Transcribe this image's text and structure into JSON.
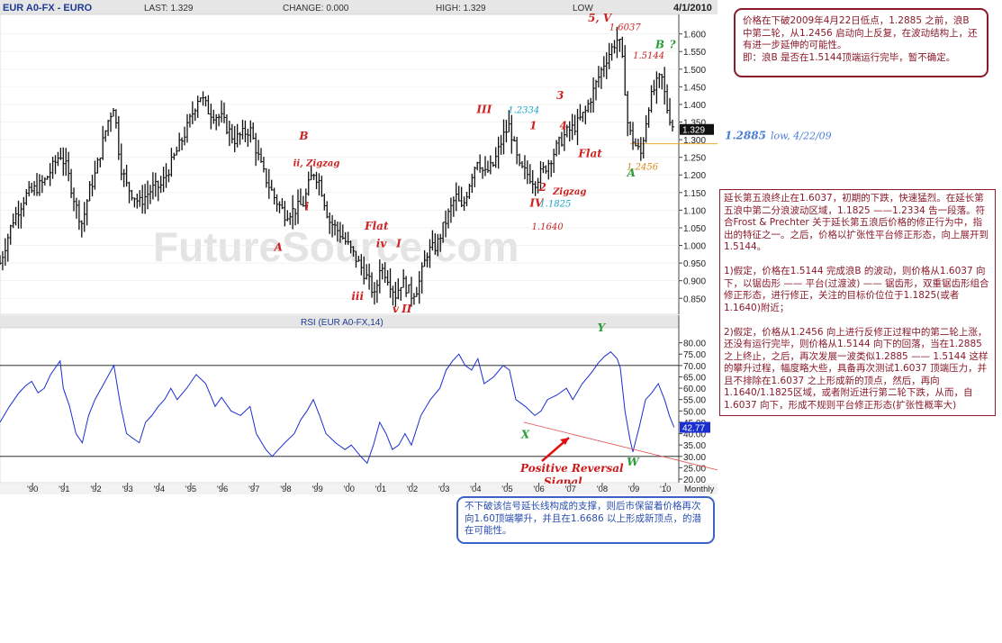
{
  "header": {
    "symbol": "EUR A0-FX - EURO",
    "last": "LAST: 1.329",
    "change": "CHANGE: 0.000",
    "high": "HIGH: 1.329",
    "low": "LOW",
    "date": "4/1/2010"
  },
  "watermark": "FutureSource.com",
  "chart_data": [
    {
      "type": "bar",
      "title": "EUR A0-FX - EURO",
      "frequency": "Monthly",
      "ylim": [
        0.82,
        1.64
      ],
      "yticks": [
        "1.600",
        "1.550",
        "1.500",
        "1.450",
        "1.400",
        "1.350",
        "1.300",
        "1.250",
        "1.200",
        "1.150",
        "1.100",
        "1.050",
        "1.000",
        "0.950",
        "0.900",
        "0.850"
      ],
      "last_value": "1.329",
      "reference_line": {
        "value": "1.2885",
        "label": "low, 4/22/09"
      },
      "close_path": [
        [
          1989.0,
          0.95
        ],
        [
          1989.4,
          1.07
        ],
        [
          1989.8,
          1.14
        ],
        [
          1990.4,
          1.18
        ],
        [
          1990.9,
          1.26
        ],
        [
          1991.1,
          1.22
        ],
        [
          1991.4,
          1.11
        ],
        [
          1991.6,
          1.06
        ],
        [
          1991.8,
          1.15
        ],
        [
          1992.0,
          1.2
        ],
        [
          1992.4,
          1.35
        ],
        [
          1992.6,
          1.4
        ],
        [
          1992.8,
          1.23
        ],
        [
          1993.0,
          1.17
        ],
        [
          1993.4,
          1.12
        ],
        [
          1993.8,
          1.16
        ],
        [
          1994.1,
          1.17
        ],
        [
          1994.5,
          1.25
        ],
        [
          1994.9,
          1.33
        ],
        [
          1995.3,
          1.43
        ],
        [
          1995.6,
          1.38
        ],
        [
          1996.0,
          1.36
        ],
        [
          1996.4,
          1.3
        ],
        [
          1996.9,
          1.33
        ],
        [
          1997.3,
          1.21
        ],
        [
          1997.7,
          1.13
        ],
        [
          1998.0,
          1.09
        ],
        [
          1998.3,
          1.1
        ],
        [
          1998.6,
          1.12
        ],
        [
          1998.75,
          1.17
        ],
        [
          1998.9,
          1.21
        ],
        [
          1999.1,
          1.18
        ],
        [
          1999.4,
          1.07
        ],
        [
          1999.7,
          1.04
        ],
        [
          2000.0,
          1.0
        ],
        [
          2000.4,
          0.94
        ],
        [
          2000.7,
          0.89
        ],
        [
          2000.85,
          0.85
        ],
        [
          2001.0,
          0.94
        ],
        [
          2001.2,
          0.92
        ],
        [
          2001.5,
          0.86
        ],
        [
          2001.7,
          0.9
        ],
        [
          2002.0,
          0.86
        ],
        [
          2002.2,
          0.88
        ],
        [
          2002.5,
          0.98
        ],
        [
          2002.8,
          1.0
        ],
        [
          2003.0,
          1.05
        ],
        [
          2003.4,
          1.14
        ],
        [
          2003.6,
          1.1
        ],
        [
          2003.9,
          1.2
        ],
        [
          2004.1,
          1.25
        ],
        [
          2004.3,
          1.2
        ],
        [
          2004.6,
          1.23
        ],
        [
          2004.9,
          1.31
        ],
        [
          2005.1,
          1.34
        ],
        [
          2005.4,
          1.22
        ],
        [
          2005.7,
          1.2
        ],
        [
          2005.9,
          1.18
        ],
        [
          2006.3,
          1.23
        ],
        [
          2006.6,
          1.28
        ],
        [
          2006.9,
          1.32
        ],
        [
          2007.2,
          1.34
        ],
        [
          2007.5,
          1.38
        ],
        [
          2007.8,
          1.45
        ],
        [
          2008.1,
          1.52
        ],
        [
          2008.4,
          1.57
        ],
        [
          2008.55,
          1.59
        ],
        [
          2008.7,
          1.5
        ],
        [
          2008.85,
          1.33
        ],
        [
          2009.1,
          1.28
        ],
        [
          2009.25,
          1.26
        ],
        [
          2009.5,
          1.4
        ],
        [
          2009.7,
          1.45
        ],
        [
          2009.9,
          1.48
        ],
        [
          2010.1,
          1.38
        ],
        [
          2010.3,
          1.329
        ]
      ]
    },
    {
      "type": "line",
      "title": "RSI (EUR A0-FX,14)",
      "ylim": [
        20,
        85
      ],
      "yticks": [
        "80.00",
        "75.00",
        "70.00",
        "65.00",
        "60.00",
        "55.00",
        "50.00",
        "45.00",
        "40.00",
        "35.00",
        "30.00",
        "25.00",
        "20.00"
      ],
      "last_value": "42.77",
      "reference_lines": [
        30,
        70
      ],
      "x_tick_labels": [
        "'90",
        "'91",
        "'92",
        "'93",
        "'94",
        "'95",
        "'96",
        "'97",
        "'98",
        "'99",
        "'00",
        "'01",
        "'02",
        "'03",
        "'04",
        "'05",
        "'06",
        "'07",
        "'08",
        "'09",
        "'10"
      ],
      "x_tick_values": [
        1990,
        1991,
        1992,
        1993,
        1994,
        1995,
        1996,
        1997,
        1998,
        1999,
        2000,
        2001,
        2002,
        2003,
        2004,
        2005,
        2006,
        2007,
        2008,
        2009,
        2010
      ],
      "x_tick_suffix": "Monthly",
      "points": [
        [
          1989.0,
          45
        ],
        [
          1989.3,
          52
        ],
        [
          1989.6,
          58
        ],
        [
          1989.8,
          61
        ],
        [
          1990.0,
          63
        ],
        [
          1990.2,
          58
        ],
        [
          1990.4,
          60
        ],
        [
          1990.6,
          66
        ],
        [
          1990.9,
          72
        ],
        [
          1991.0,
          60
        ],
        [
          1991.2,
          52
        ],
        [
          1991.4,
          40
        ],
        [
          1991.6,
          36
        ],
        [
          1991.8,
          48
        ],
        [
          1992.0,
          55
        ],
        [
          1992.2,
          60
        ],
        [
          1992.4,
          65
        ],
        [
          1992.6,
          70
        ],
        [
          1992.8,
          53
        ],
        [
          1993.0,
          40
        ],
        [
          1993.2,
          38
        ],
        [
          1993.4,
          36
        ],
        [
          1993.6,
          45
        ],
        [
          1993.8,
          48
        ],
        [
          1994.0,
          52
        ],
        [
          1994.2,
          55
        ],
        [
          1994.4,
          60
        ],
        [
          1994.6,
          55
        ],
        [
          1994.9,
          60
        ],
        [
          1995.2,
          66
        ],
        [
          1995.5,
          62
        ],
        [
          1995.8,
          52
        ],
        [
          1996.0,
          56
        ],
        [
          1996.3,
          50
        ],
        [
          1996.6,
          48
        ],
        [
          1996.9,
          52
        ],
        [
          1997.1,
          40
        ],
        [
          1997.4,
          33
        ],
        [
          1997.6,
          30
        ],
        [
          1997.8,
          33
        ],
        [
          1998.0,
          36
        ],
        [
          1998.3,
          40
        ],
        [
          1998.5,
          46
        ],
        [
          1998.7,
          50
        ],
        [
          1998.9,
          55
        ],
        [
          1999.1,
          48
        ],
        [
          1999.3,
          40
        ],
        [
          1999.6,
          36
        ],
        [
          1999.9,
          33
        ],
        [
          2000.1,
          35
        ],
        [
          2000.4,
          30
        ],
        [
          2000.6,
          27
        ],
        [
          2000.8,
          35
        ],
        [
          2001.0,
          45
        ],
        [
          2001.2,
          40
        ],
        [
          2001.4,
          33
        ],
        [
          2001.6,
          35
        ],
        [
          2001.8,
          40
        ],
        [
          2002.0,
          35
        ],
        [
          2002.3,
          48
        ],
        [
          2002.6,
          55
        ],
        [
          2002.9,
          60
        ],
        [
          2003.1,
          68
        ],
        [
          2003.3,
          72
        ],
        [
          2003.5,
          75
        ],
        [
          2003.7,
          70
        ],
        [
          2003.9,
          68
        ],
        [
          2004.1,
          73
        ],
        [
          2004.3,
          62
        ],
        [
          2004.6,
          65
        ],
        [
          2004.9,
          70
        ],
        [
          2005.1,
          68
        ],
        [
          2005.3,
          55
        ],
        [
          2005.6,
          52
        ],
        [
          2005.9,
          48
        ],
        [
          2006.1,
          50
        ],
        [
          2006.3,
          55
        ],
        [
          2006.6,
          57
        ],
        [
          2006.9,
          60
        ],
        [
          2007.1,
          55
        ],
        [
          2007.4,
          62
        ],
        [
          2007.7,
          67
        ],
        [
          2007.9,
          71
        ],
        [
          2008.1,
          74
        ],
        [
          2008.3,
          76
        ],
        [
          2008.5,
          73
        ],
        [
          2008.6,
          69
        ],
        [
          2008.75,
          50
        ],
        [
          2008.9,
          38
        ],
        [
          2009.0,
          32
        ],
        [
          2009.2,
          43
        ],
        [
          2009.4,
          55
        ],
        [
          2009.6,
          58
        ],
        [
          2009.8,
          62
        ],
        [
          2010.0,
          55
        ],
        [
          2010.15,
          48
        ],
        [
          2010.3,
          42.77
        ]
      ]
    }
  ],
  "wave_labels": [
    {
      "text": "A",
      "x": 1997.8,
      "y": 0.985,
      "color": "#cc2222"
    },
    {
      "text": "B",
      "x": 1998.6,
      "y": 1.3,
      "color": "#cc2222"
    },
    {
      "text": "ii, Zigzag",
      "x": 1999.0,
      "y": 1.225,
      "color": "#cc2222"
    },
    {
      "text": "i",
      "x": 1998.7,
      "y": 1.1,
      "color": "#cc2222"
    },
    {
      "text": "Flat",
      "x": 2000.9,
      "y": 1.045,
      "color": "#cc2222"
    },
    {
      "text": "iv",
      "x": 2001.05,
      "y": 0.995,
      "color": "#cc2222"
    },
    {
      "text": "I",
      "x": 2001.6,
      "y": 0.995,
      "color": "#cc2222"
    },
    {
      "text": "iii",
      "x": 2000.3,
      "y": 0.845,
      "color": "#cc2222"
    },
    {
      "text": "v",
      "x": 2001.5,
      "y": 0.81,
      "color": "#cc2222"
    },
    {
      "text": "II",
      "x": 2001.85,
      "y": 0.81,
      "color": "#cc2222"
    },
    {
      "text": "III",
      "x": 2004.3,
      "y": 1.375,
      "color": "#cc2222"
    },
    {
      "text": "1.2334",
      "x": 2005.55,
      "y": 1.375,
      "color": "#1aa3c9"
    },
    {
      "text": "1",
      "x": 2005.85,
      "y": 1.33,
      "color": "#cc2222"
    },
    {
      "text": "3",
      "x": 2006.7,
      "y": 1.415,
      "color": "#cc2222"
    },
    {
      "text": "4",
      "x": 2006.8,
      "y": 1.33,
      "color": "#cc2222"
    },
    {
      "text": "5, V",
      "x": 2007.95,
      "y": 1.635,
      "color": "#cc2222"
    },
    {
      "text": "1.6037",
      "x": 2008.75,
      "y": 1.61,
      "color": "#cc2222"
    },
    {
      "text": "1.5144",
      "x": 2009.5,
      "y": 1.53,
      "color": "#cc2222"
    },
    {
      "text": "B",
      "x": 2009.85,
      "y": 1.56,
      "color": "#2a9d3a"
    },
    {
      "text": "?",
      "x": 2010.25,
      "y": 1.56,
      "color": "#2a9d3a"
    },
    {
      "text": "Flat",
      "x": 2007.65,
      "y": 1.25,
      "color": "#cc2222"
    },
    {
      "text": "1.2456",
      "x": 2009.3,
      "y": 1.215,
      "color": "#d88a1a"
    },
    {
      "text": "A",
      "x": 2008.95,
      "y": 1.195,
      "color": "#2a9d3a"
    },
    {
      "text": "2",
      "x": 2006.15,
      "y": 1.155,
      "color": "#cc2222"
    },
    {
      "text": "Zigzag",
      "x": 2007.0,
      "y": 1.145,
      "color": "#cc2222"
    },
    {
      "text": "IV",
      "x": 2005.95,
      "y": 1.11,
      "color": "#cc2222"
    },
    {
      "text": "1.1825",
      "x": 2006.55,
      "y": 1.11,
      "color": "#1aa3c9"
    },
    {
      "text": "1.1640",
      "x": 2006.3,
      "y": 1.045,
      "color": "#cc2222"
    }
  ],
  "rsi_labels": [
    {
      "text": "Y",
      "x": 2008.0,
      "y": 85,
      "color": "#2a9d3a"
    },
    {
      "text": "X",
      "x": 2005.6,
      "y": 38,
      "color": "#2a9d3a"
    },
    {
      "text": "W",
      "x": 2009.0,
      "y": 26,
      "color": "#2a9d3a"
    }
  ],
  "rsi_annotation": {
    "line1": "Positive Reversal",
    "line2": "Signal"
  },
  "notes": {
    "top": "价格在下破2009年4月22日低点，1.2885 之前，浪B 中第二轮，从1.2456 启动向上反复，在波动结构上，还有进一步延伸的可能性。\n即：浪B 是否在1.5144顶端运行完毕，暂不确定。",
    "right": "延长第五浪终止在1.6037，初期的下跌，快速猛烈。在延长第五浪中第二分浪波动区域，1.1825 ——1.2334 告一段落。符合Frost & Prechter 关于延长第五浪后价格的修正行为中，指出的特征之一。之后，价格以扩张性平台修正形态，向上展开到1.5144。\n\n1)假定，价格在1.5144 完成浪B 的波动，则价格从1.6037 向下，以锯齿形 —— 平台(过渡波) —— 锯齿形，双重锯齿形组合修正形态，进行修正，关注的目标价位位于1.1825(或者1.1640)附近；\n\n2)假定，价格从1.2456 向上进行反修正过程中的第二轮上涨，还没有运行完毕，则价格从1.5144 向下的回落，当在1.2885 之上终止，之后，再次发展一波类似1.2885 —— 1.5144 这样的攀升过程，幅度略大些，具备再次测试1.6037 顶端压力，并且不排除在1.6037 之上形成新的顶点，然后，再向1.1640/1.1825区域，或者附近进行第二轮下跌，从而，自1.6037 向下，形成不规则平台修正形态(扩张性概率大)",
    "bottom": "不下破该信号延长线构成的支撑，则后市保留着价格再次向1.60顶端攀升，并且在1.6686 以上形成新顶点，的潜在可能性。"
  }
}
